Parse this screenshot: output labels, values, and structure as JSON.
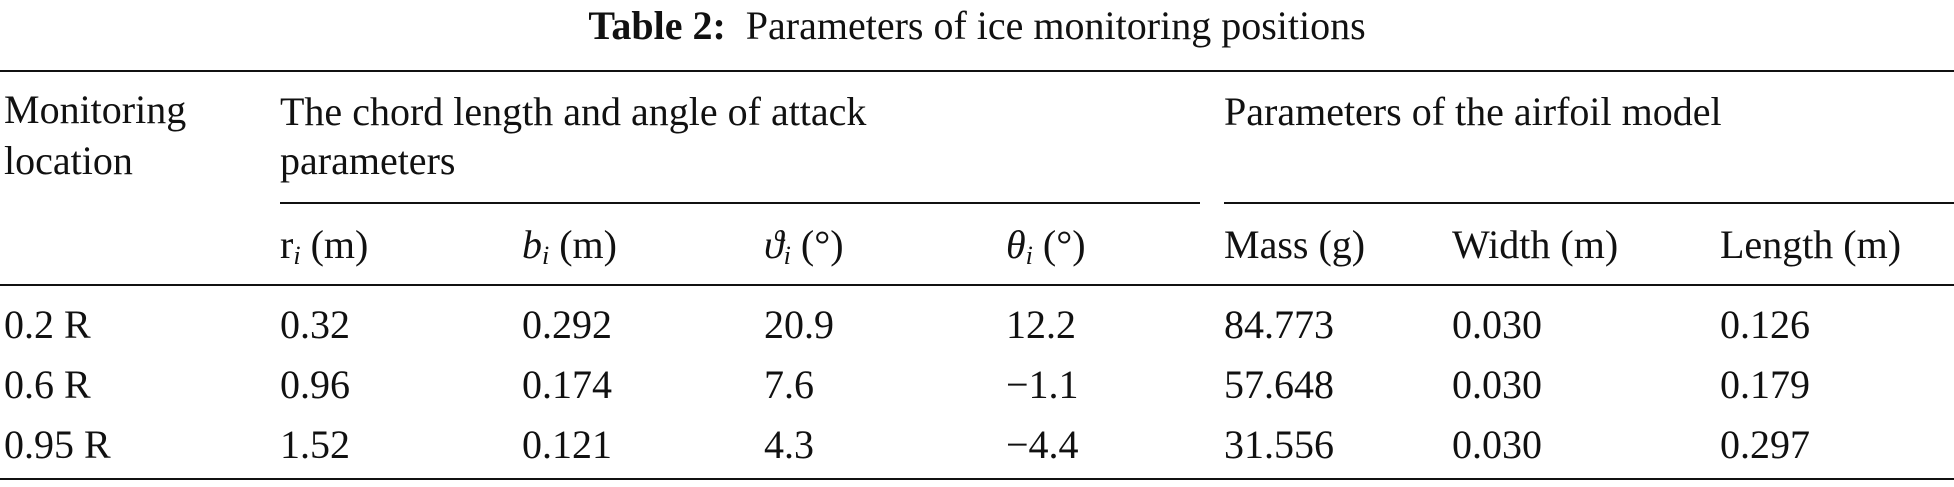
{
  "caption": {
    "label": "Table 2:",
    "text": "Parameters of ice monitoring positions"
  },
  "headers": {
    "location_line1": "Monitoring",
    "location_line2": "location",
    "group1_line1": "The chord length and angle of attack",
    "group1_line2": "parameters",
    "group2": "Parameters of the airfoil model",
    "cols": [
      {
        "sym": "r",
        "sub": "i",
        "unit": " (m)"
      },
      {
        "sym": "b",
        "sub": "i",
        "unit": " (m)"
      },
      {
        "sym": "ϑ",
        "sub": "i",
        "unit": " (°)"
      },
      {
        "sym": "θ",
        "sub": "i",
        "unit": " (°)"
      },
      {
        "text": "Mass (g)"
      },
      {
        "text": "Width (m)"
      },
      {
        "text": "Length (m)"
      }
    ]
  },
  "rows": [
    [
      "0.2 R",
      "0.32",
      "0.292",
      "20.9",
      "12.2",
      "84.773",
      "0.030",
      "0.126"
    ],
    [
      "0.6 R",
      "0.96",
      "0.174",
      "7.6",
      "−1.1",
      "57.648",
      "0.030",
      "0.179"
    ],
    [
      "0.95 R",
      "1.52",
      "0.121",
      "4.3",
      "−4.4",
      "31.556",
      "0.030",
      "0.297"
    ]
  ]
}
